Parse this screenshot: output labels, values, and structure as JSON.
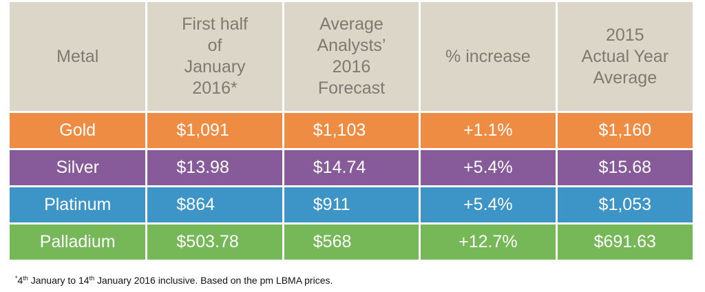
{
  "headers": [
    "Metal",
    "First half of January 2016*",
    "Average Analysts’ 2016 Forecast",
    "% increase",
    "2015 Actual Year Average"
  ],
  "header_lines": {
    "h0": [
      "Metal"
    ],
    "h1": [
      "First half",
      "of",
      "January",
      "2016*"
    ],
    "h2": [
      "Average",
      "Analysts’",
      "2016",
      "Forecast"
    ],
    "h3": [
      "% increase"
    ],
    "h4": [
      "2015",
      "Actual Year",
      "Average"
    ]
  },
  "rows": [
    {
      "metal": "Gold",
      "first_half_jan_2016": "$1,091",
      "forecast_2016": "$1,103",
      "increase": "+1.1%",
      "avg_2015": "$1,160",
      "color": "#ef8c43"
    },
    {
      "metal": "Silver",
      "first_half_jan_2016": "$13.98",
      "forecast_2016": "$14.74",
      "increase": "+5.4%",
      "avg_2015": "$15.68",
      "color": "#875a99"
    },
    {
      "metal": "Platinum",
      "first_half_jan_2016": "$864",
      "forecast_2016": "$911",
      "increase": "+5.4%",
      "avg_2015": "$1,053",
      "color": "#3d94c7"
    },
    {
      "metal": "Palladium",
      "first_half_jan_2016": "$503.78",
      "forecast_2016": "$568",
      "increase": "+12.7%",
      "avg_2015": "$691.63",
      "color": "#76b757"
    }
  ],
  "footnote": {
    "sup1": "*4",
    "th1": "th",
    "text1": " January to 14",
    "th2": "th",
    "text2": " January 2016 inclusive. Based on the pm LBMA prices."
  },
  "colors": {
    "header_bg": "#dcd6c8",
    "header_text": "#7d7a72"
  }
}
